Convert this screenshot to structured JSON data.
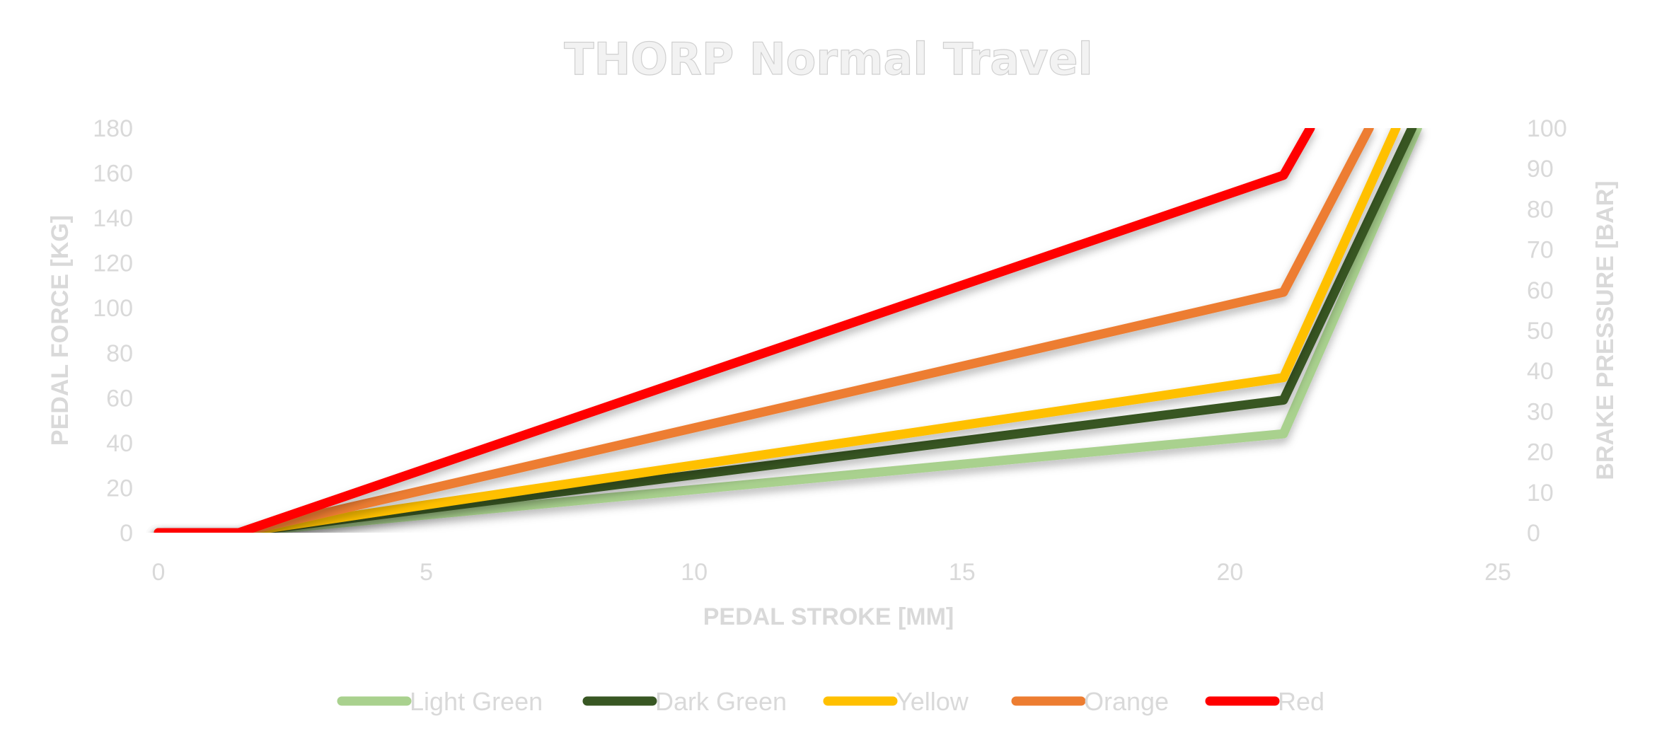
{
  "chart_data": {
    "type": "line",
    "title": "THORP Normal Travel",
    "xlabel": "PEDAL STROKE [MM]",
    "ylabel": "PEDAL FORCE [KG]",
    "y2label": "BRAKE PRESSURE [BAR]",
    "xlim": [
      0,
      25
    ],
    "ylim": [
      0,
      180
    ],
    "y2lim": [
      0,
      100
    ],
    "xticks": [
      "0",
      "5",
      "10",
      "15",
      "20",
      "25"
    ],
    "yticks": [
      "0",
      "20",
      "40",
      "60",
      "80",
      "100",
      "120",
      "140",
      "160",
      "180"
    ],
    "y2ticks": [
      "0",
      "10",
      "20",
      "30",
      "40",
      "50",
      "60",
      "70",
      "80",
      "90",
      "100"
    ],
    "legend_position": "bottom",
    "grid": false,
    "series": [
      {
        "name": "Light Green",
        "color": "#a9d18e",
        "x": [
          0,
          1.5,
          21,
          23.5
        ],
        "y": [
          0,
          0,
          44,
          180
        ]
      },
      {
        "name": "Dark Green",
        "color": "#385723",
        "x": [
          0,
          1.5,
          21,
          23.4
        ],
        "y": [
          0,
          0,
          59,
          180
        ]
      },
      {
        "name": "Yellow",
        "color": "#ffc000",
        "x": [
          0,
          1.5,
          21,
          23.1
        ],
        "y": [
          0,
          0,
          69,
          180
        ]
      },
      {
        "name": "Orange",
        "color": "#ed7d31",
        "x": [
          0,
          1.5,
          21,
          22.6
        ],
        "y": [
          0,
          0,
          107,
          180
        ]
      },
      {
        "name": "Red",
        "color": "#ff0000",
        "x": [
          0,
          1.5,
          21,
          21.5
        ],
        "y": [
          0,
          0,
          159,
          180
        ]
      }
    ]
  }
}
